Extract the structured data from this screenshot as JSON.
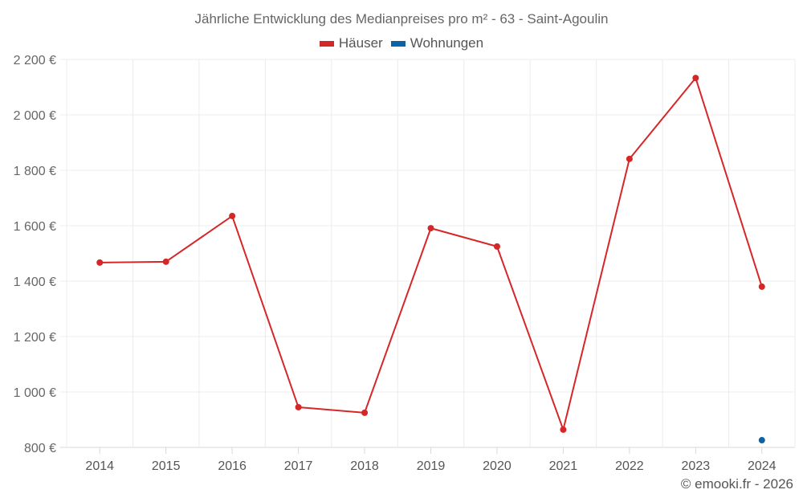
{
  "header": {
    "title": "Jährliche Entwicklung des Medianpreises pro m² - 63 - Saint-Agoulin"
  },
  "legend": [
    {
      "label": "Häuser",
      "color": "#d62728"
    },
    {
      "label": "Wohnungen",
      "color": "#0b62a4"
    }
  ],
  "footer": {
    "credit": "© emooki.fr - 2026"
  },
  "chart_data": {
    "type": "line",
    "title": "Jährliche Entwicklung des Medianpreises pro m² - 63 - Saint-Agoulin",
    "xlabel": "",
    "ylabel": "",
    "categories": [
      "2014",
      "2015",
      "2016",
      "2017",
      "2018",
      "2019",
      "2020",
      "2021",
      "2022",
      "2023",
      "2024"
    ],
    "series": [
      {
        "name": "Häuser",
        "color": "#d62728",
        "values": [
          1467,
          1470,
          1635,
          945,
          925,
          1591,
          1525,
          864,
          1841,
          2133,
          1380
        ]
      },
      {
        "name": "Wohnungen",
        "color": "#0b62a4",
        "values": [
          null,
          null,
          null,
          null,
          null,
          null,
          null,
          null,
          null,
          null,
          826
        ]
      }
    ],
    "ylim": [
      800,
      2200
    ],
    "yticks": [
      800,
      1000,
      1200,
      1400,
      1600,
      1800,
      2000,
      2200
    ],
    "ytick_labels": [
      "800 €",
      "1 000 €",
      "1 200 €",
      "1 400 €",
      "1 600 €",
      "1 800 €",
      "2 000 €",
      "2 200 €"
    ],
    "grid": true,
    "legend_position": "top"
  }
}
